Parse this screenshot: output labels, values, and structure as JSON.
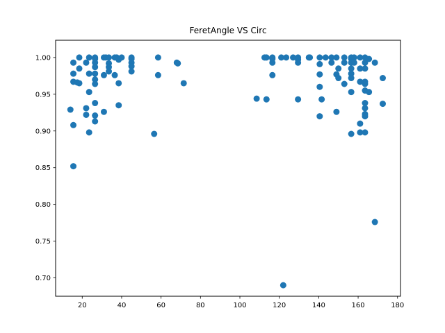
{
  "chart_data": {
    "type": "scatter",
    "title": "FeretAngle VS Circ",
    "xlabel": "",
    "ylabel": "",
    "xlim": [
      6.5,
      181.5
    ],
    "ylim": [
      0.675,
      1.0235
    ],
    "xticks": [
      20,
      40,
      60,
      80,
      100,
      120,
      140,
      160,
      180
    ],
    "xtick_labels": [
      "20",
      "40",
      "60",
      "80",
      "100",
      "120",
      "140",
      "160",
      "180"
    ],
    "yticks": [
      0.7,
      0.75,
      0.8,
      0.85,
      0.9,
      0.95,
      1.0
    ],
    "ytick_labels": [
      "0.70",
      "0.75",
      "0.80",
      "0.85",
      "0.90",
      "0.95",
      "1.00"
    ],
    "grid": false,
    "marker_color": "#1f77b4",
    "points": [
      [
        14,
        0.929
      ],
      [
        15.5,
        0.993
      ],
      [
        15.5,
        0.978
      ],
      [
        15.5,
        0.967
      ],
      [
        15.5,
        0.908
      ],
      [
        15.5,
        0.852
      ],
      [
        17.5,
        0.966
      ],
      [
        18.5,
        1.0
      ],
      [
        18.5,
        0.985
      ],
      [
        18.5,
        0.965
      ],
      [
        22,
        0.993
      ],
      [
        22,
        0.931
      ],
      [
        22,
        0.922
      ],
      [
        23.5,
        1.0
      ],
      [
        23.5,
        0.978
      ],
      [
        23.5,
        0.953
      ],
      [
        23.5,
        0.898
      ],
      [
        26.5,
        1.0
      ],
      [
        26.5,
        0.998
      ],
      [
        26.5,
        0.993
      ],
      [
        26.5,
        0.987
      ],
      [
        26.5,
        0.978
      ],
      [
        26.5,
        0.97
      ],
      [
        26.5,
        0.964
      ],
      [
        26.5,
        0.938
      ],
      [
        26.5,
        0.921
      ],
      [
        26.5,
        0.913
      ],
      [
        31,
        1.0
      ],
      [
        31,
        0.976
      ],
      [
        31,
        0.926
      ],
      [
        32,
        1.0
      ],
      [
        33.5,
        1.0
      ],
      [
        33.5,
        0.992
      ],
      [
        33.5,
        0.987
      ],
      [
        33.5,
        0.981
      ],
      [
        36.5,
        1.0
      ],
      [
        36.5,
        0.976
      ],
      [
        37.5,
        1.0
      ],
      [
        38.5,
        0.997
      ],
      [
        38.5,
        0.965
      ],
      [
        38.5,
        0.935
      ],
      [
        40,
        1.0
      ],
      [
        45,
        1.0
      ],
      [
        45,
        0.998
      ],
      [
        45,
        0.993
      ],
      [
        45,
        0.988
      ],
      [
        45,
        0.981
      ],
      [
        56.5,
        0.896
      ],
      [
        58.5,
        1.0
      ],
      [
        58.5,
        0.976
      ],
      [
        68,
        0.993
      ],
      [
        68.5,
        0.992
      ],
      [
        71.5,
        0.965
      ],
      [
        108.5,
        0.944
      ],
      [
        112.5,
        1.0
      ],
      [
        113.5,
        1.0
      ],
      [
        113.5,
        0.943
      ],
      [
        116.5,
        1.0
      ],
      [
        116.5,
        0.998
      ],
      [
        116.5,
        0.993
      ],
      [
        116.5,
        0.976
      ],
      [
        121,
        1.0
      ],
      [
        122,
        0.69
      ],
      [
        123.5,
        1.0
      ],
      [
        127,
        1.0
      ],
      [
        129.5,
        1.0
      ],
      [
        129.5,
        0.997
      ],
      [
        129.5,
        0.993
      ],
      [
        129.5,
        0.943
      ],
      [
        135,
        1.0
      ],
      [
        135.5,
        1.0
      ],
      [
        140.5,
        1.0
      ],
      [
        140.5,
        0.991
      ],
      [
        140.5,
        0.977
      ],
      [
        140.5,
        0.96
      ],
      [
        140.5,
        0.92
      ],
      [
        141.5,
        0.943
      ],
      [
        143.5,
        1.0
      ],
      [
        146.5,
        1.0
      ],
      [
        146.5,
        0.993
      ],
      [
        149,
        1.0
      ],
      [
        149,
        0.977
      ],
      [
        149,
        0.926
      ],
      [
        150,
        0.985
      ],
      [
        150,
        0.972
      ],
      [
        153,
        1.0
      ],
      [
        153,
        0.993
      ],
      [
        153,
        0.964
      ],
      [
        156.5,
        1.0
      ],
      [
        156.5,
        0.998
      ],
      [
        156.5,
        0.993
      ],
      [
        156.5,
        0.985
      ],
      [
        156.5,
        0.978
      ],
      [
        156.5,
        0.972
      ],
      [
        156.5,
        0.953
      ],
      [
        156.5,
        0.896
      ],
      [
        158,
        1.0
      ],
      [
        158,
        0.993
      ],
      [
        161,
        1.0
      ],
      [
        161,
        0.985
      ],
      [
        161,
        0.967
      ],
      [
        161,
        0.91
      ],
      [
        161,
        0.898
      ],
      [
        163.5,
        1.0
      ],
      [
        163.5,
        0.993
      ],
      [
        163.5,
        0.985
      ],
      [
        163.5,
        0.967
      ],
      [
        163.5,
        0.964
      ],
      [
        163.5,
        0.955
      ],
      [
        163.5,
        0.938
      ],
      [
        163.5,
        0.931
      ],
      [
        163.5,
        0.923
      ],
      [
        163.5,
        0.92
      ],
      [
        163.5,
        0.898
      ],
      [
        165.5,
        0.998
      ],
      [
        165.5,
        0.953
      ],
      [
        168.5,
        0.993
      ],
      [
        168.5,
        0.776
      ],
      [
        172.5,
        0.972
      ],
      [
        172.5,
        0.937
      ]
    ]
  }
}
